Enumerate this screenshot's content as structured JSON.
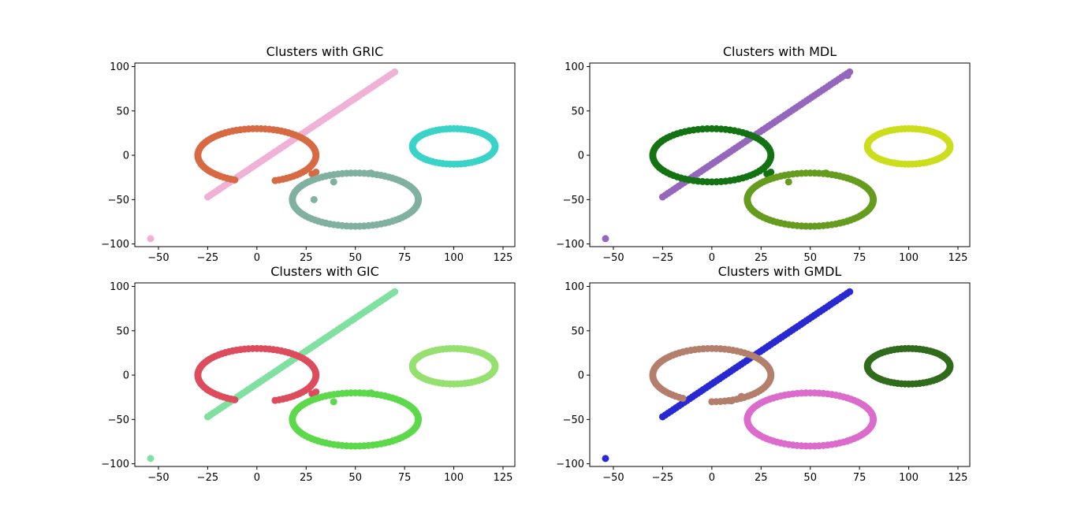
{
  "figure": {
    "background": "#ffffff"
  },
  "chart_data": [
    {
      "type": "scatter",
      "title": "Clusters with GRIC",
      "xlim": [
        -62,
        131
      ],
      "ylim": [
        -103,
        104
      ],
      "xticks": [
        -50,
        -25,
        0,
        25,
        50,
        75,
        100,
        125
      ],
      "yticks": [
        -100,
        -50,
        0,
        50,
        100
      ],
      "xtick_labels": [
        "−50",
        "−25",
        "0",
        "25",
        "50",
        "75",
        "100",
        "125"
      ],
      "ytick_labels": [
        "−100",
        "−50",
        "0",
        "50",
        "100"
      ],
      "grid": false,
      "series": [
        {
          "color": "#f0b1d7",
          "shape": "line",
          "from": [
            -25,
            -47
          ],
          "to": [
            70,
            94
          ],
          "count": 70
        },
        {
          "color": "#f0b1d7",
          "shape": "points",
          "points": [
            [
              -54,
              -94
            ]
          ]
        },
        {
          "color": "#d76a42",
          "shape": "ellipse",
          "center": [
            0,
            0
          ],
          "radii": [
            30,
            30
          ],
          "count": 80,
          "arc": [
            0.05,
            0.95
          ]
        },
        {
          "color": "#d76a42",
          "shape": "points",
          "points": [
            [
              30,
              -19
            ],
            [
              28,
              -21
            ]
          ]
        },
        {
          "color": "#80b0a0",
          "shape": "ellipse",
          "center": [
            50,
            -50
          ],
          "radii": [
            32,
            30
          ],
          "count": 90
        },
        {
          "color": "#80b0a0",
          "shape": "points",
          "points": [
            [
              39,
              -30
            ],
            [
              29,
              -50
            ],
            [
              58,
              -20
            ]
          ]
        },
        {
          "color": "#3ad3c8",
          "shape": "ellipse",
          "center": [
            100,
            10
          ],
          "radii": [
            21,
            20
          ],
          "count": 70
        }
      ]
    },
    {
      "type": "scatter",
      "title": "Clusters with MDL",
      "xlim": [
        -62,
        131
      ],
      "ylim": [
        -103,
        104
      ],
      "xticks": [
        -50,
        -25,
        0,
        25,
        50,
        75,
        100,
        125
      ],
      "yticks": [
        -100,
        -50,
        0,
        50,
        100
      ],
      "xtick_labels": [
        "−50",
        "−25",
        "0",
        "25",
        "50",
        "75",
        "100",
        "125"
      ],
      "ytick_labels": [
        "−100",
        "−50",
        "0",
        "50",
        "100"
      ],
      "grid": false,
      "series": [
        {
          "color": "#9467bd",
          "shape": "line",
          "from": [
            -25,
            -47
          ],
          "to": [
            70,
            94
          ],
          "count": 70
        },
        {
          "color": "#9467bd",
          "shape": "points",
          "points": [
            [
              -54,
              -94
            ],
            [
              69,
              90
            ]
          ]
        },
        {
          "color": "#137313",
          "shape": "ellipse",
          "center": [
            0,
            0
          ],
          "radii": [
            30,
            30
          ],
          "count": 80
        },
        {
          "color": "#137313",
          "shape": "points",
          "points": [
            [
              30,
              -19
            ],
            [
              28,
              -21
            ]
          ]
        },
        {
          "color": "#659c1e",
          "shape": "ellipse",
          "center": [
            50,
            -50
          ],
          "radii": [
            32,
            30
          ],
          "count": 90
        },
        {
          "color": "#659c1e",
          "shape": "points",
          "points": [
            [
              39,
              -30
            ],
            [
              58,
              -20
            ]
          ]
        },
        {
          "color": "#ccdd1c",
          "shape": "ellipse",
          "center": [
            100,
            10
          ],
          "radii": [
            21,
            20
          ],
          "count": 70
        }
      ]
    },
    {
      "type": "scatter",
      "title": "Clusters with GIC",
      "xlim": [
        -62,
        131
      ],
      "ylim": [
        -103,
        104
      ],
      "xticks": [
        -50,
        -25,
        0,
        25,
        50,
        75,
        100,
        125
      ],
      "yticks": [
        -100,
        -50,
        0,
        50,
        100
      ],
      "xtick_labels": [
        "−50",
        "−25",
        "0",
        "25",
        "50",
        "75",
        "100",
        "125"
      ],
      "ytick_labels": [
        "−100",
        "−50",
        "0",
        "50",
        "100"
      ],
      "grid": false,
      "series": [
        {
          "color": "#80e0a0",
          "shape": "line",
          "from": [
            -25,
            -47
          ],
          "to": [
            70,
            94
          ],
          "count": 70
        },
        {
          "color": "#80e0a0",
          "shape": "points",
          "points": [
            [
              -54,
              -94
            ]
          ]
        },
        {
          "color": "#dc4c5d",
          "shape": "ellipse",
          "center": [
            0,
            0
          ],
          "radii": [
            30,
            30
          ],
          "count": 80,
          "arc": [
            0.05,
            0.95
          ]
        },
        {
          "color": "#dc4c5d",
          "shape": "points",
          "points": [
            [
              30,
              -19
            ],
            [
              28,
              -21
            ]
          ]
        },
        {
          "color": "#5cd94a",
          "shape": "ellipse",
          "center": [
            50,
            -50
          ],
          "radii": [
            32,
            30
          ],
          "count": 90
        },
        {
          "color": "#5cd94a",
          "shape": "points",
          "points": [
            [
              39,
              -30
            ],
            [
              58,
              -20
            ]
          ]
        },
        {
          "color": "#96e070",
          "shape": "ellipse",
          "center": [
            100,
            10
          ],
          "radii": [
            21,
            20
          ],
          "count": 70
        }
      ]
    },
    {
      "type": "scatter",
      "title": "Clusters with GMDL",
      "xlim": [
        -62,
        131
      ],
      "ylim": [
        -103,
        104
      ],
      "xticks": [
        -50,
        -25,
        0,
        25,
        50,
        75,
        100,
        125
      ],
      "yticks": [
        -100,
        -50,
        0,
        50,
        100
      ],
      "xtick_labels": [
        "−50",
        "−25",
        "0",
        "25",
        "50",
        "75",
        "100",
        "125"
      ],
      "ytick_labels": [
        "−100",
        "−50",
        "0",
        "50",
        "100"
      ],
      "grid": false,
      "series": [
        {
          "color": "#2929d3",
          "shape": "line",
          "from": [
            -25,
            -47
          ],
          "to": [
            70,
            94
          ],
          "count": 70
        },
        {
          "color": "#2929d3",
          "shape": "points",
          "points": [
            [
              -54,
              -94
            ]
          ]
        },
        {
          "color": "#b37f6c",
          "shape": "ellipse",
          "center": [
            0,
            0
          ],
          "radii": [
            30,
            30
          ],
          "count": 80,
          "arc": [
            0.0,
            0.93
          ]
        },
        {
          "color": "#b37f6c",
          "shape": "points",
          "points": [
            [
              10,
              -29
            ],
            [
              15,
              -24
            ]
          ]
        },
        {
          "color": "#db6ccb",
          "shape": "ellipse",
          "center": [
            50,
            -50
          ],
          "radii": [
            32,
            30
          ],
          "count": 90
        },
        {
          "color": "#2f6b1b",
          "shape": "ellipse",
          "center": [
            100,
            10
          ],
          "radii": [
            21,
            20
          ],
          "count": 70
        }
      ]
    }
  ]
}
